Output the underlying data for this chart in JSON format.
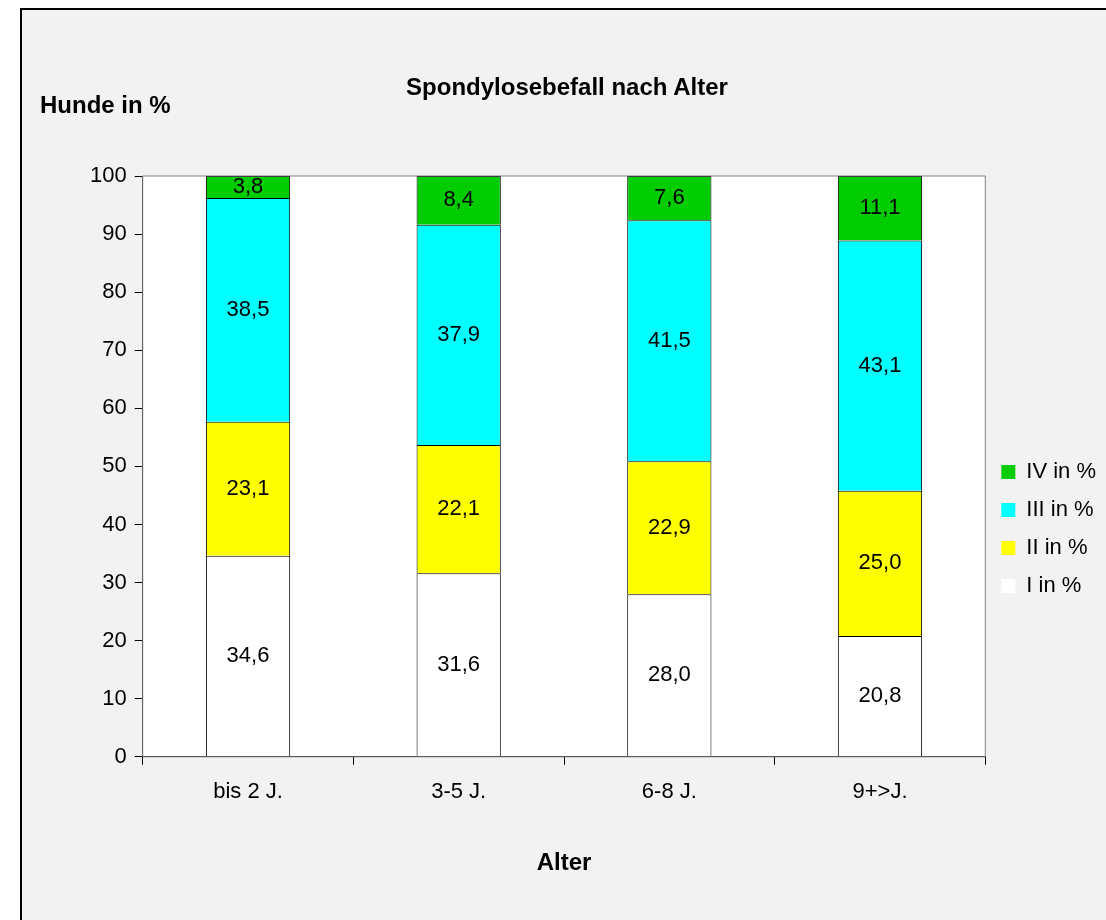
{
  "chart_data": {
    "type": "bar",
    "title": "Spondylosebefall nach Alter",
    "xlabel": "Alter",
    "ylabel": "Hunde in %",
    "categories": [
      "bis 2 J.",
      "3-5 J.",
      "6-8 J.",
      "9+>J."
    ],
    "stacked": true,
    "ylim": [
      0,
      100
    ],
    "yticks": [
      0,
      10,
      20,
      30,
      40,
      50,
      60,
      70,
      80,
      90,
      100
    ],
    "grid": false,
    "legend": "right",
    "series": [
      {
        "name": "I in %",
        "color": "#ffffff",
        "values": [
          34.6,
          31.6,
          28.0,
          20.8
        ],
        "value_labels": [
          "34,6",
          "31,6",
          "28,0",
          "20,8"
        ]
      },
      {
        "name": "II in %",
        "color": "#ffff00",
        "values": [
          23.1,
          22.1,
          22.9,
          25.0
        ],
        "value_labels": [
          "23,1",
          "22,1",
          "22,9",
          "25,0"
        ]
      },
      {
        "name": "III in %",
        "color": "#00ffff",
        "values": [
          38.5,
          37.9,
          41.5,
          43.1
        ],
        "value_labels": [
          "38,5",
          "37,9",
          "41,5",
          "43,1"
        ]
      },
      {
        "name": "IV in %",
        "color": "#00cc00",
        "values": [
          3.8,
          8.4,
          7.6,
          11.1
        ],
        "value_labels": [
          "3,8",
          "8,4",
          "7,6",
          "11,1"
        ]
      }
    ]
  }
}
